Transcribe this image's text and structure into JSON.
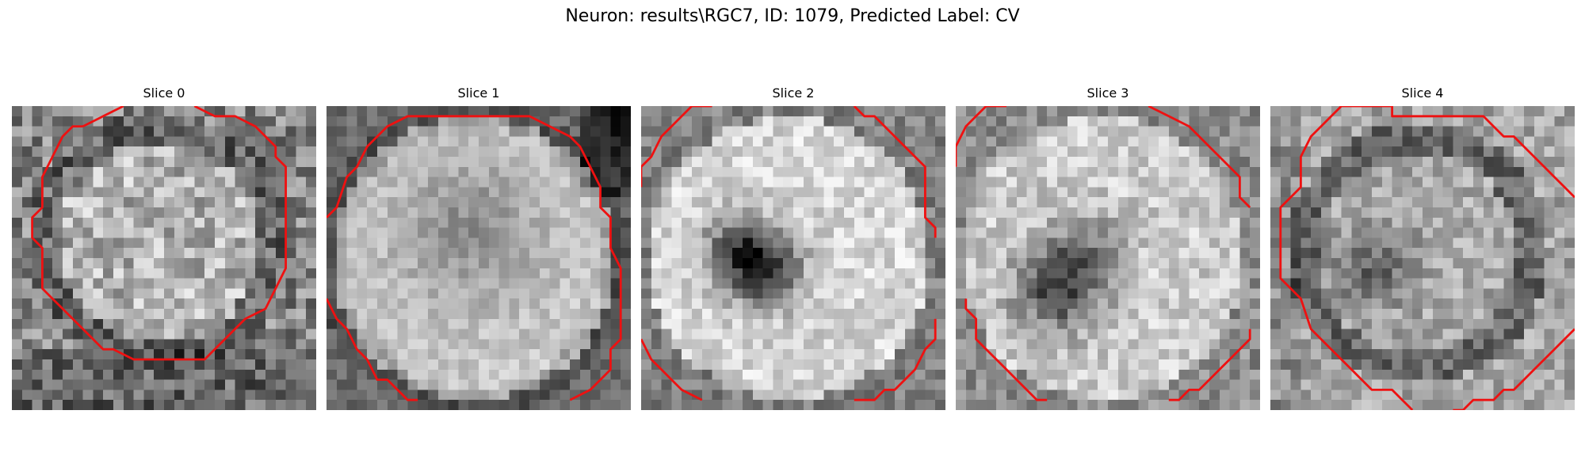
{
  "figure": {
    "title": "Neuron: results\\RGC7, ID: 1079, Predicted Label: CV"
  },
  "panels": [
    {
      "title": "Slice 0"
    },
    {
      "title": "Slice 1"
    },
    {
      "title": "Slice 2"
    },
    {
      "title": "Slice 3"
    },
    {
      "title": "Slice 4"
    }
  ],
  "colors": {
    "contour": "#ee1111",
    "colormap": "grayscale"
  }
}
